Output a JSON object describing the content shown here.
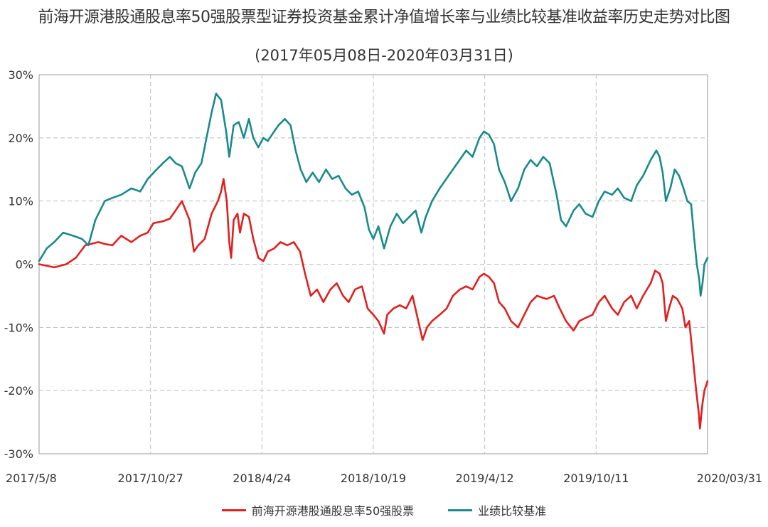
{
  "chart_data": {
    "type": "line",
    "title": "前海开源港股通股息率50强股票型证券投资基金累计净值增长率与业绩比较基准收益率历史走势对比图",
    "subtitle": "(2017年05月08日-2020年03月31日)",
    "x_tick_labels": [
      "2017/5/8",
      "2017/10/27",
      "2018/4/24",
      "2018/10/19",
      "2019/4/12",
      "2019/10/11",
      "2020/03/31"
    ],
    "x_range": [
      "2017-05-08",
      "2020-03-31"
    ],
    "y_tick_labels": [
      "30%",
      "20%",
      "10%",
      "0%",
      "-10%",
      "-20%",
      "-30%"
    ],
    "ylim": [
      -30,
      30
    ],
    "grid": true,
    "legend_position": "bottom",
    "series": [
      {
        "name": "前海开源港股通股息率50强股票",
        "color": "#e02020",
        "points": [
          [
            "2017-05-08",
            0
          ],
          [
            "2017-06-01",
            -0.5
          ],
          [
            "2017-06-20",
            0
          ],
          [
            "2017-07-05",
            1.0
          ],
          [
            "2017-07-20",
            3.0
          ],
          [
            "2017-08-10",
            3.5
          ],
          [
            "2017-08-20",
            3.2
          ],
          [
            "2017-09-01",
            3.0
          ],
          [
            "2017-09-15",
            4.5
          ],
          [
            "2017-10-01",
            3.5
          ],
          [
            "2017-10-15",
            4.5
          ],
          [
            "2017-10-27",
            5.0
          ],
          [
            "2017-11-05",
            6.5
          ],
          [
            "2017-11-20",
            6.8
          ],
          [
            "2017-12-01",
            7.2
          ],
          [
            "2017-12-10",
            8.5
          ],
          [
            "2017-12-20",
            10.0
          ],
          [
            "2018-01-01",
            7.0
          ],
          [
            "2018-01-08",
            2.0
          ],
          [
            "2018-01-15",
            3.0
          ],
          [
            "2018-01-25",
            4.0
          ],
          [
            "2018-02-05",
            8.0
          ],
          [
            "2018-02-15",
            10.0
          ],
          [
            "2018-02-20",
            11.5
          ],
          [
            "2018-02-24",
            13.5
          ],
          [
            "2018-03-01",
            10.0
          ],
          [
            "2018-03-05",
            3.5
          ],
          [
            "2018-03-08",
            1.0
          ],
          [
            "2018-03-12",
            7.0
          ],
          [
            "2018-03-18",
            8.0
          ],
          [
            "2018-03-22",
            5.0
          ],
          [
            "2018-03-28",
            8.0
          ],
          [
            "2018-04-05",
            7.5
          ],
          [
            "2018-04-12",
            4.0
          ],
          [
            "2018-04-20",
            1.0
          ],
          [
            "2018-04-28",
            0.5
          ],
          [
            "2018-05-05",
            2.0
          ],
          [
            "2018-05-15",
            2.5
          ],
          [
            "2018-05-25",
            3.5
          ],
          [
            "2018-06-05",
            3.0
          ],
          [
            "2018-06-15",
            3.5
          ],
          [
            "2018-06-25",
            2.0
          ],
          [
            "2018-07-03",
            -1.5
          ],
          [
            "2018-07-12",
            -5.0
          ],
          [
            "2018-07-22",
            -4.0
          ],
          [
            "2018-08-01",
            -6.0
          ],
          [
            "2018-08-12",
            -4.0
          ],
          [
            "2018-08-22",
            -3.0
          ],
          [
            "2018-09-01",
            -5.0
          ],
          [
            "2018-09-10",
            -6.0
          ],
          [
            "2018-09-20",
            -4.0
          ],
          [
            "2018-10-01",
            -3.5
          ],
          [
            "2018-10-10",
            -7.0
          ],
          [
            "2018-10-19",
            -8.0
          ],
          [
            "2018-10-27",
            -9.0
          ],
          [
            "2018-11-05",
            -11.0
          ],
          [
            "2018-11-10",
            -8.0
          ],
          [
            "2018-11-20",
            -7.0
          ],
          [
            "2018-11-30",
            -6.5
          ],
          [
            "2018-12-10",
            -7.0
          ],
          [
            "2018-12-20",
            -5.0
          ],
          [
            "2018-12-28",
            -8.5
          ],
          [
            "2019-01-05",
            -12.0
          ],
          [
            "2019-01-12",
            -10.0
          ],
          [
            "2019-01-20",
            -9.0
          ],
          [
            "2019-02-01",
            -8.0
          ],
          [
            "2019-02-12",
            -7.0
          ],
          [
            "2019-02-22",
            -5.0
          ],
          [
            "2019-03-05",
            -4.0
          ],
          [
            "2019-03-15",
            -3.5
          ],
          [
            "2019-03-25",
            -4.0
          ],
          [
            "2019-04-05",
            -2.0
          ],
          [
            "2019-04-12",
            -1.5
          ],
          [
            "2019-04-20",
            -2.0
          ],
          [
            "2019-04-28",
            -3.0
          ],
          [
            "2019-05-06",
            -6.0
          ],
          [
            "2019-05-15",
            -7.0
          ],
          [
            "2019-05-25",
            -9.0
          ],
          [
            "2019-06-05",
            -10.0
          ],
          [
            "2019-06-15",
            -8.0
          ],
          [
            "2019-06-25",
            -6.0
          ],
          [
            "2019-07-05",
            -5.0
          ],
          [
            "2019-07-20",
            -5.5
          ],
          [
            "2019-08-01",
            -5.0
          ],
          [
            "2019-08-10",
            -7.0
          ],
          [
            "2019-08-20",
            -9.0
          ],
          [
            "2019-09-01",
            -10.5
          ],
          [
            "2019-09-10",
            -9.0
          ],
          [
            "2019-09-20",
            -8.5
          ],
          [
            "2019-10-01",
            -8.0
          ],
          [
            "2019-10-11",
            -6.0
          ],
          [
            "2019-10-20",
            -5.0
          ],
          [
            "2019-11-01",
            -7.0
          ],
          [
            "2019-11-10",
            -8.0
          ],
          [
            "2019-11-20",
            -6.0
          ],
          [
            "2019-12-01",
            -5.0
          ],
          [
            "2019-12-10",
            -7.0
          ],
          [
            "2019-12-20",
            -5.0
          ],
          [
            "2020-01-01",
            -3.0
          ],
          [
            "2020-01-08",
            -1.0
          ],
          [
            "2020-01-15",
            -1.5
          ],
          [
            "2020-01-20",
            -3.0
          ],
          [
            "2020-01-25",
            -9.0
          ],
          [
            "2020-01-30",
            -7.0
          ],
          [
            "2020-02-05",
            -5.0
          ],
          [
            "2020-02-12",
            -5.5
          ],
          [
            "2020-02-20",
            -7.0
          ],
          [
            "2020-02-25",
            -10.0
          ],
          [
            "2020-03-02",
            -9.0
          ],
          [
            "2020-03-08",
            -15.0
          ],
          [
            "2020-03-13",
            -20.0
          ],
          [
            "2020-03-17",
            -23.5
          ],
          [
            "2020-03-19",
            -26.0
          ],
          [
            "2020-03-23",
            -22.0
          ],
          [
            "2020-03-26",
            -20.0
          ],
          [
            "2020-03-31",
            -18.5
          ]
        ]
      },
      {
        "name": "业绩比较基准",
        "color": "#1a8a8a",
        "points": [
          [
            "2017-05-08",
            0.5
          ],
          [
            "2017-05-20",
            2.5
          ],
          [
            "2017-06-01",
            3.5
          ],
          [
            "2017-06-15",
            5.0
          ],
          [
            "2017-07-01",
            4.5
          ],
          [
            "2017-07-15",
            4.0
          ],
          [
            "2017-07-25",
            3.0
          ],
          [
            "2017-08-05",
            7.0
          ],
          [
            "2017-08-20",
            10.0
          ],
          [
            "2017-09-01",
            10.5
          ],
          [
            "2017-09-15",
            11.0
          ],
          [
            "2017-10-01",
            12.0
          ],
          [
            "2017-10-15",
            11.5
          ],
          [
            "2017-10-27",
            13.5
          ],
          [
            "2017-11-10",
            15.0
          ],
          [
            "2017-11-20",
            16.0
          ],
          [
            "2017-12-01",
            17.0
          ],
          [
            "2017-12-10",
            16.0
          ],
          [
            "2017-12-20",
            15.5
          ],
          [
            "2018-01-01",
            12.0
          ],
          [
            "2018-01-10",
            14.5
          ],
          [
            "2018-01-20",
            16.0
          ],
          [
            "2018-01-28",
            20.0
          ],
          [
            "2018-02-05",
            24.0
          ],
          [
            "2018-02-12",
            27.0
          ],
          [
            "2018-02-20",
            26.0
          ],
          [
            "2018-02-28",
            21.0
          ],
          [
            "2018-03-05",
            17.0
          ],
          [
            "2018-03-12",
            22.0
          ],
          [
            "2018-03-20",
            22.5
          ],
          [
            "2018-03-28",
            20.0
          ],
          [
            "2018-04-05",
            23.0
          ],
          [
            "2018-04-12",
            20.0
          ],
          [
            "2018-04-20",
            18.5
          ],
          [
            "2018-04-28",
            20.0
          ],
          [
            "2018-05-05",
            19.5
          ],
          [
            "2018-05-15",
            21.0
          ],
          [
            "2018-05-22",
            22.0
          ],
          [
            "2018-06-01",
            23.0
          ],
          [
            "2018-06-10",
            22.0
          ],
          [
            "2018-06-18",
            18.0
          ],
          [
            "2018-06-26",
            15.0
          ],
          [
            "2018-07-05",
            13.0
          ],
          [
            "2018-07-15",
            14.5
          ],
          [
            "2018-07-25",
            13.0
          ],
          [
            "2018-08-05",
            15.0
          ],
          [
            "2018-08-15",
            13.5
          ],
          [
            "2018-08-25",
            14.0
          ],
          [
            "2018-09-05",
            12.0
          ],
          [
            "2018-09-15",
            11.0
          ],
          [
            "2018-09-25",
            11.5
          ],
          [
            "2018-10-05",
            9.0
          ],
          [
            "2018-10-12",
            5.5
          ],
          [
            "2018-10-19",
            4.0
          ],
          [
            "2018-10-27",
            6.0
          ],
          [
            "2018-11-05",
            2.5
          ],
          [
            "2018-11-15",
            6.0
          ],
          [
            "2018-11-25",
            8.0
          ],
          [
            "2018-12-05",
            6.5
          ],
          [
            "2018-12-15",
            7.5
          ],
          [
            "2018-12-25",
            8.5
          ],
          [
            "2019-01-03",
            5.0
          ],
          [
            "2019-01-10",
            7.5
          ],
          [
            "2019-01-20",
            10.0
          ],
          [
            "2019-02-01",
            12.0
          ],
          [
            "2019-02-15",
            14.0
          ],
          [
            "2019-03-01",
            16.0
          ],
          [
            "2019-03-15",
            18.0
          ],
          [
            "2019-03-25",
            17.0
          ],
          [
            "2019-04-05",
            20.0
          ],
          [
            "2019-04-12",
            21.0
          ],
          [
            "2019-04-20",
            20.5
          ],
          [
            "2019-04-28",
            19.0
          ],
          [
            "2019-05-06",
            15.0
          ],
          [
            "2019-05-15",
            13.0
          ],
          [
            "2019-05-25",
            10.0
          ],
          [
            "2019-06-05",
            12.0
          ],
          [
            "2019-06-15",
            15.0
          ],
          [
            "2019-06-25",
            16.5
          ],
          [
            "2019-07-05",
            15.5
          ],
          [
            "2019-07-15",
            17.0
          ],
          [
            "2019-07-25",
            16.0
          ],
          [
            "2019-08-05",
            11.0
          ],
          [
            "2019-08-12",
            7.0
          ],
          [
            "2019-08-20",
            6.0
          ],
          [
            "2019-09-01",
            8.5
          ],
          [
            "2019-09-10",
            9.5
          ],
          [
            "2019-09-20",
            8.0
          ],
          [
            "2019-10-01",
            7.5
          ],
          [
            "2019-10-11",
            10.0
          ],
          [
            "2019-10-20",
            11.5
          ],
          [
            "2019-11-01",
            11.0
          ],
          [
            "2019-11-10",
            12.0
          ],
          [
            "2019-11-20",
            10.5
          ],
          [
            "2019-12-01",
            10.0
          ],
          [
            "2019-12-10",
            12.5
          ],
          [
            "2019-12-20",
            14.0
          ],
          [
            "2020-01-01",
            16.5
          ],
          [
            "2020-01-10",
            18.0
          ],
          [
            "2020-01-15",
            17.0
          ],
          [
            "2020-01-20",
            14.5
          ],
          [
            "2020-01-25",
            10.0
          ],
          [
            "2020-02-01",
            12.0
          ],
          [
            "2020-02-08",
            15.0
          ],
          [
            "2020-02-15",
            14.0
          ],
          [
            "2020-02-22",
            12.0
          ],
          [
            "2020-02-28",
            10.0
          ],
          [
            "2020-03-05",
            9.5
          ],
          [
            "2020-03-10",
            4.0
          ],
          [
            "2020-03-14",
            0.0
          ],
          [
            "2020-03-18",
            -2.5
          ],
          [
            "2020-03-20",
            -5.0
          ],
          [
            "2020-03-23",
            -3.0
          ],
          [
            "2020-03-26",
            0.0
          ],
          [
            "2020-03-31",
            1.0
          ]
        ]
      }
    ]
  }
}
